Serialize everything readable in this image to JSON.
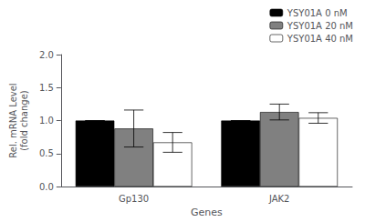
{
  "chart_data": {
    "type": "bar",
    "categories": [
      "Gp130",
      "JAK2"
    ],
    "series": [
      {
        "name": "YSY01A 0 nM",
        "color": "#000000",
        "values": [
          1.0,
          1.0
        ],
        "errors": [
          0.0,
          0.0
        ]
      },
      {
        "name": "YSY01A 20 nM",
        "color": "#808080",
        "values": [
          0.88,
          1.13
        ],
        "errors": [
          0.28,
          0.12
        ]
      },
      {
        "name": "YSY01A 40 nM",
        "color": "#ffffff",
        "values": [
          0.67,
          1.04
        ],
        "errors": [
          0.15,
          0.08
        ]
      }
    ],
    "xlabel": "Genes",
    "ylabel": "Rel. mRNA Level\n(fold change)",
    "ylim": [
      0,
      2.0
    ],
    "yticks": [
      {
        "value": 0,
        "label": "0.0"
      },
      0.5,
      {
        "value": 1,
        "label": "1.0"
      },
      1.5,
      {
        "value": 2,
        "label": "2.0"
      }
    ],
    "grid": false,
    "legend": "upper right"
  }
}
